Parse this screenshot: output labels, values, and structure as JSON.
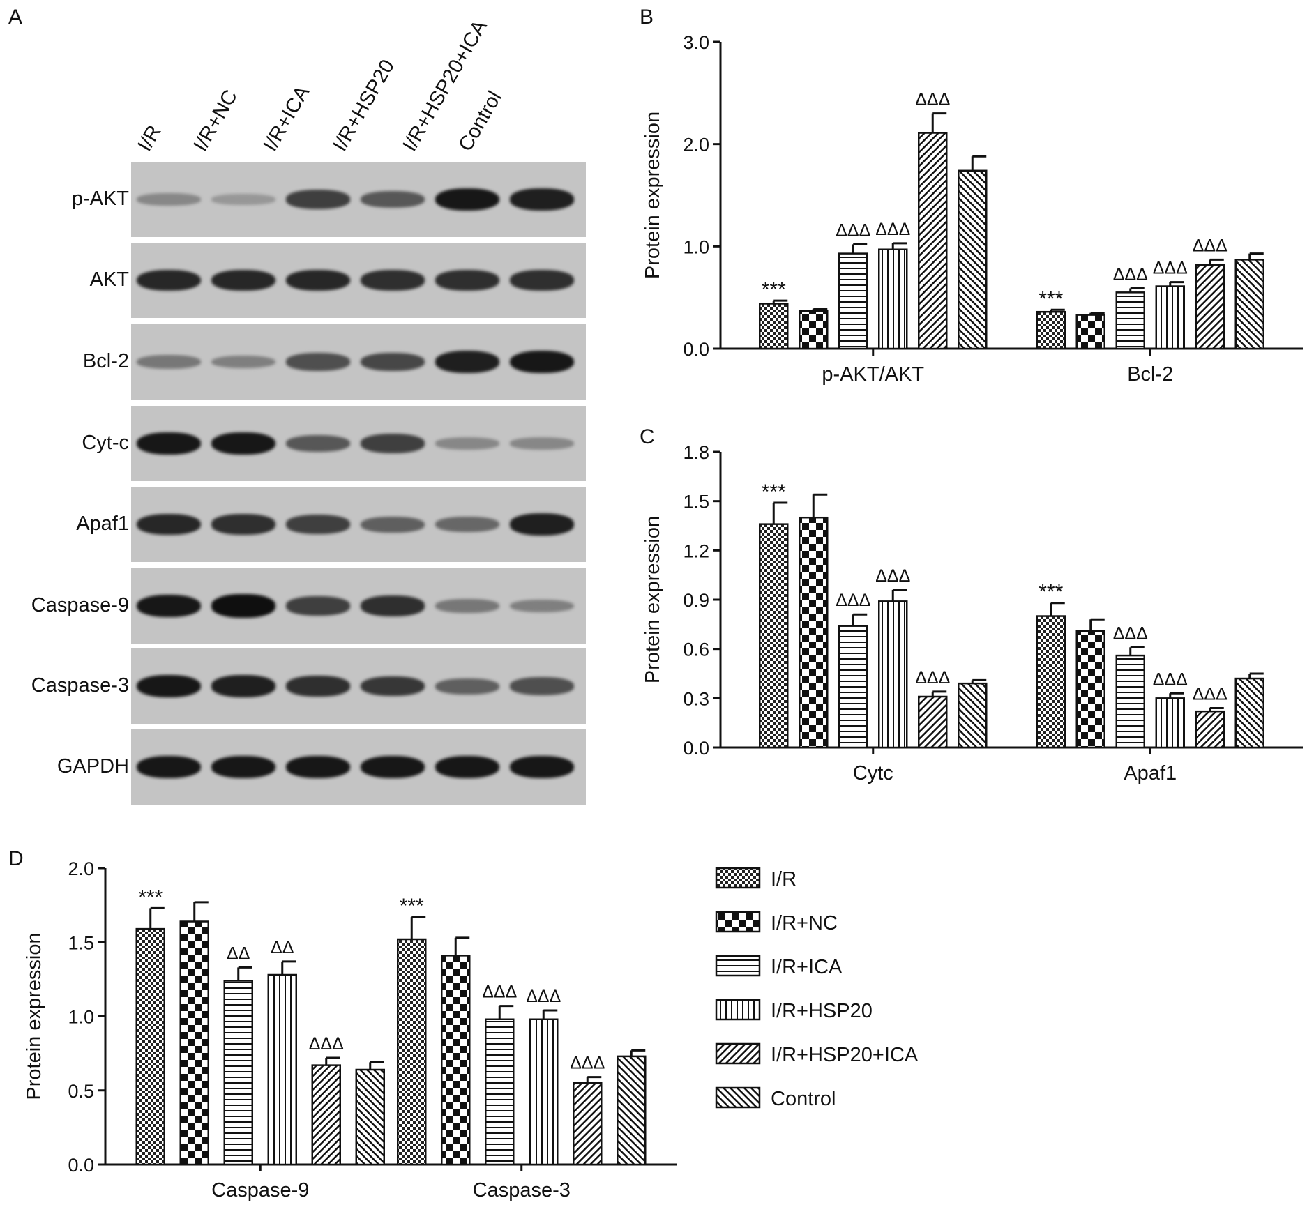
{
  "panel_letters": {
    "a": "A",
    "b": "B",
    "c": "C",
    "d": "D"
  },
  "blot": {
    "lanes": [
      "I/R",
      "I/R+NC",
      "I/R+ICA",
      "I/R+HSP20",
      "I/R+HSP20+ICA",
      "Control"
    ],
    "rows": [
      {
        "label": "p-AKT",
        "intensity": [
          0.25,
          0.15,
          0.7,
          0.55,
          0.95,
          0.9
        ]
      },
      {
        "label": "AKT",
        "intensity": [
          0.85,
          0.85,
          0.85,
          0.8,
          0.8,
          0.8
        ]
      },
      {
        "label": "Bcl-2",
        "intensity": [
          0.35,
          0.3,
          0.6,
          0.65,
          0.9,
          0.95
        ]
      },
      {
        "label": "Cyt-c",
        "intensity": [
          0.95,
          0.95,
          0.55,
          0.7,
          0.25,
          0.25
        ]
      },
      {
        "label": "Apaf1",
        "intensity": [
          0.85,
          0.8,
          0.7,
          0.5,
          0.45,
          0.9
        ]
      },
      {
        "label": "Caspase-9",
        "intensity": [
          0.95,
          1.0,
          0.7,
          0.8,
          0.35,
          0.3
        ]
      },
      {
        "label": "Caspase-3",
        "intensity": [
          0.95,
          0.9,
          0.8,
          0.75,
          0.5,
          0.6
        ]
      },
      {
        "label": "GAPDH",
        "intensity": [
          0.95,
          0.95,
          0.95,
          0.95,
          0.95,
          0.95
        ]
      }
    ]
  },
  "legend": {
    "items": [
      "I/R",
      "I/R+NC",
      "I/R+ICA",
      "I/R+HSP20",
      "I/R+HSP20+ICA",
      "Control"
    ]
  },
  "chart_data": [
    {
      "panel": "B",
      "type": "bar",
      "categories": [
        "p-AKT/AKT",
        "Bcl-2"
      ],
      "ylabel": "Protein expression",
      "ylim": [
        0,
        3.0
      ],
      "yticks": [
        "0.0",
        "1.0",
        "2.0",
        "3.0"
      ],
      "series": [
        {
          "name": "I/R",
          "values": [
            0.44,
            0.36
          ],
          "errors": [
            0.03,
            0.02
          ],
          "annotations": [
            "***",
            "***"
          ]
        },
        {
          "name": "I/R+NC",
          "values": [
            0.37,
            0.33
          ],
          "errors": [
            0.02,
            0.02
          ],
          "annotations": [
            "",
            ""
          ]
        },
        {
          "name": "I/R+ICA",
          "values": [
            0.93,
            0.55
          ],
          "errors": [
            0.09,
            0.04
          ],
          "annotations": [
            "ΔΔΔ",
            "ΔΔΔ"
          ]
        },
        {
          "name": "I/R+HSP20",
          "values": [
            0.97,
            0.61
          ],
          "errors": [
            0.06,
            0.04
          ],
          "annotations": [
            "ΔΔΔ",
            "ΔΔΔ"
          ]
        },
        {
          "name": "I/R+HSP20+ICA",
          "values": [
            2.11,
            0.82
          ],
          "errors": [
            0.19,
            0.05
          ],
          "annotations": [
            "ΔΔΔ",
            "ΔΔΔ"
          ]
        },
        {
          "name": "Control",
          "values": [
            1.74,
            0.87
          ],
          "errors": [
            0.14,
            0.06
          ],
          "annotations": [
            "",
            ""
          ]
        }
      ]
    },
    {
      "panel": "C",
      "type": "bar",
      "categories": [
        "Cytc",
        "Apaf1"
      ],
      "ylabel": "Protein expression",
      "ylim": [
        0,
        1.8
      ],
      "yticks": [
        "0.0",
        "0.3",
        "0.6",
        "0.9",
        "1.2",
        "1.5",
        "1.8"
      ],
      "series": [
        {
          "name": "I/R",
          "values": [
            1.36,
            0.8
          ],
          "errors": [
            0.13,
            0.08
          ],
          "annotations": [
            "***",
            "***"
          ]
        },
        {
          "name": "I/R+NC",
          "values": [
            1.4,
            0.71
          ],
          "errors": [
            0.14,
            0.07
          ],
          "annotations": [
            "",
            ""
          ]
        },
        {
          "name": "I/R+ICA",
          "values": [
            0.74,
            0.56
          ],
          "errors": [
            0.07,
            0.05
          ],
          "annotations": [
            "ΔΔΔ",
            "ΔΔΔ"
          ]
        },
        {
          "name": "I/R+HSP20",
          "values": [
            0.89,
            0.3
          ],
          "errors": [
            0.07,
            0.03
          ],
          "annotations": [
            "ΔΔΔ",
            "ΔΔΔ"
          ]
        },
        {
          "name": "I/R+HSP20+ICA",
          "values": [
            0.31,
            0.22
          ],
          "errors": [
            0.03,
            0.02
          ],
          "annotations": [
            "ΔΔΔ",
            "ΔΔΔ"
          ]
        },
        {
          "name": "Control",
          "values": [
            0.39,
            0.42
          ],
          "errors": [
            0.02,
            0.03
          ],
          "annotations": [
            "",
            ""
          ]
        }
      ]
    },
    {
      "panel": "D",
      "type": "bar",
      "categories": [
        "Caspase-9",
        "Caspase-3"
      ],
      "ylabel": "Protein expression",
      "ylim": [
        0,
        2.0
      ],
      "yticks": [
        "0.0",
        "0.5",
        "1.0",
        "1.5",
        "2.0"
      ],
      "series": [
        {
          "name": "I/R",
          "values": [
            1.59,
            1.52
          ],
          "errors": [
            0.14,
            0.15
          ],
          "annotations": [
            "***",
            "***"
          ]
        },
        {
          "name": "I/R+NC",
          "values": [
            1.64,
            1.41
          ],
          "errors": [
            0.13,
            0.12
          ],
          "annotations": [
            "",
            ""
          ]
        },
        {
          "name": "I/R+ICA",
          "values": [
            1.24,
            0.98
          ],
          "errors": [
            0.09,
            0.09
          ],
          "annotations": [
            "ΔΔ",
            "ΔΔΔ"
          ]
        },
        {
          "name": "I/R+HSP20",
          "values": [
            1.28,
            0.98
          ],
          "errors": [
            0.09,
            0.06
          ],
          "annotations": [
            "ΔΔ",
            "ΔΔΔ"
          ]
        },
        {
          "name": "I/R+HSP20+ICA",
          "values": [
            0.67,
            0.55
          ],
          "errors": [
            0.05,
            0.04
          ],
          "annotations": [
            "ΔΔΔ",
            "ΔΔΔ"
          ]
        },
        {
          "name": "Control",
          "values": [
            0.64,
            0.73
          ],
          "errors": [
            0.05,
            0.04
          ],
          "annotations": [
            "",
            ""
          ]
        }
      ]
    }
  ]
}
